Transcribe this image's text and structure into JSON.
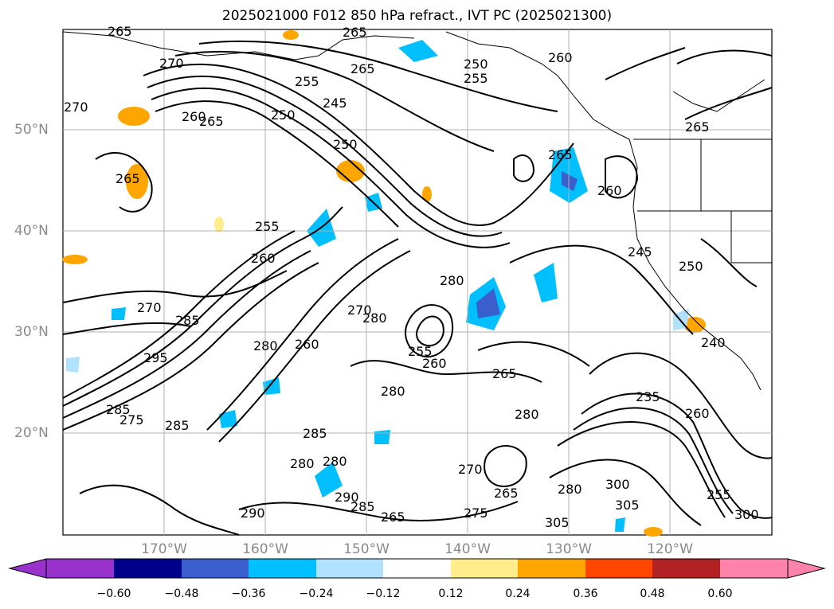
{
  "title": "2025021000 F012 850 hPa refract., IVT PC (2025021300)",
  "lat_ticks": [
    "50°N",
    "40°N",
    "30°N",
    "20°N"
  ],
  "lon_ticks": [
    "170°W",
    "160°W",
    "150°W",
    "140°W",
    "130°W",
    "120°W"
  ],
  "contour_labels": [
    "265",
    "270",
    "265",
    "270",
    "255",
    "265",
    "250",
    "255",
    "260",
    "245",
    "250",
    "265",
    "260",
    "265",
    "250",
    "265",
    "260",
    "255",
    "260",
    "280",
    "270",
    "280",
    "260",
    "255",
    "260",
    "265",
    "285",
    "295",
    "280",
    "270",
    "285",
    "275",
    "285",
    "280",
    "280",
    "285",
    "280",
    "280",
    "270",
    "280",
    "290",
    "285",
    "275",
    "265",
    "265",
    "290",
    "235",
    "260",
    "255",
    "300",
    "305",
    "305",
    "300",
    "240",
    "245",
    "250",
    "265"
  ],
  "colorbar": {
    "ticks": [
      "−0.60",
      "−0.48",
      "−0.36",
      "−0.24",
      "−0.12",
      "0.12",
      "0.24",
      "0.36",
      "0.48",
      "0.60"
    ],
    "colors": [
      "#9932cc",
      "#00008b",
      "#3a5fcd",
      "#00bfff",
      "#b0e2ff",
      "#ffffff",
      "#ffec8b",
      "#ffa500",
      "#ff4500",
      "#b22222",
      "#ff82ab"
    ]
  },
  "colors": {
    "contour": "#000000",
    "grid": "#b0b0b0",
    "coast": "#000000"
  }
}
